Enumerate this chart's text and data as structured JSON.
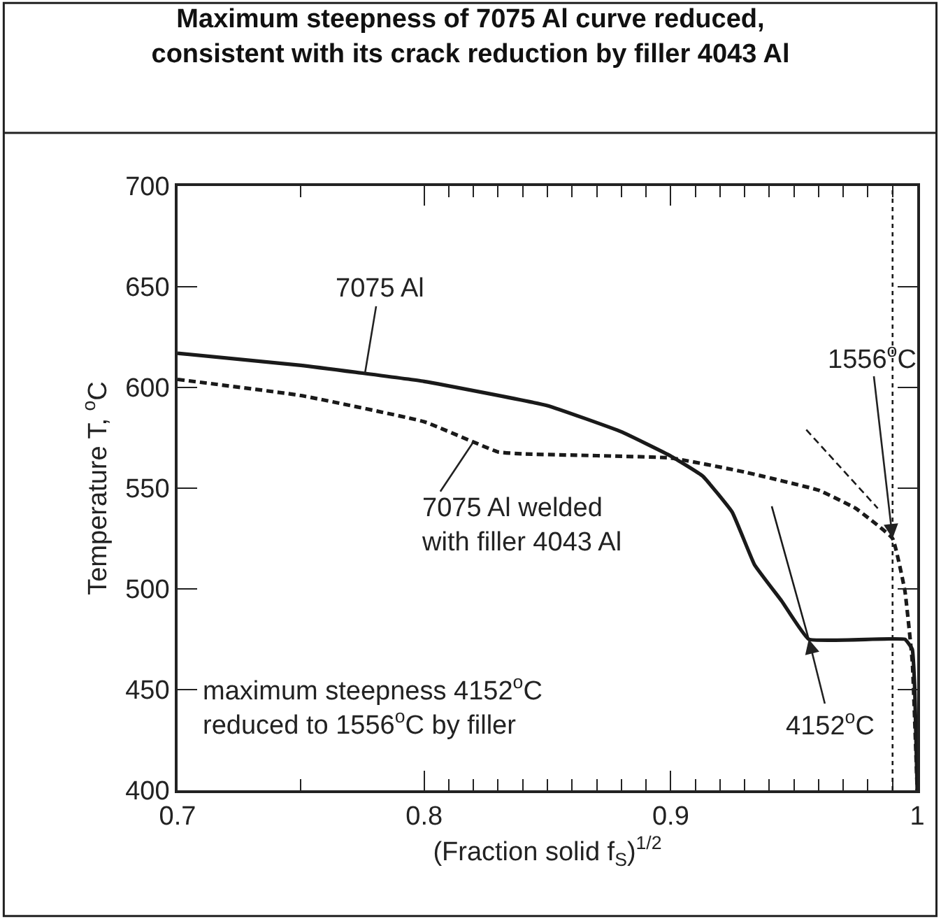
{
  "chart_data": {
    "type": "line",
    "title": "Maximum steepness of 7075 Al curve reduced,\nconsistent with its crack reduction by filler 4043 Al",
    "xlabel": "(Fraction solid f$_{S}$)$^{1/2}$",
    "ylabel": "Temperature T, $^{o}$C",
    "xlim": [
      0.7,
      1
    ],
    "ylim": [
      400,
      700
    ],
    "xticks": [
      0.7,
      0.8,
      0.9,
      1
    ],
    "yticks": [
      400,
      450,
      500,
      550,
      600,
      650,
      700
    ],
    "marker": "none",
    "series": [
      {
        "color": "#1a1a1a",
        "line_style": "solid",
        "x": [
          0.7,
          0.75,
          0.8,
          0.85,
          0.88,
          0.9,
          0.913,
          0.925,
          0.934,
          0.945,
          0.956,
          0.995,
          0.998,
          0.999,
          1.0
        ],
        "values": [
          617,
          611,
          603,
          591,
          578,
          566,
          556,
          538,
          512,
          494,
          475,
          475,
          470,
          450,
          400
        ]
      },
      {
        "color": "#1a1a1a",
        "line_style": "dashed",
        "x": [
          0.7,
          0.75,
          0.8,
          0.83,
          0.84,
          0.9,
          0.93,
          0.96,
          0.975,
          0.99,
          0.995,
          0.998,
          1.0
        ],
        "values": [
          604,
          596,
          583,
          568,
          567,
          565,
          558,
          549,
          540,
          525,
          499,
          464,
          400
        ]
      },
      {
        "color": "#1a1a1a",
        "line_style": "solid",
        "x": [
          0.941,
          0.956
        ],
        "values": [
          541,
          475
        ]
      },
      {
        "color": "#1a1a1a",
        "line_style": "dashed",
        "x": [
          0.955,
          0.984
        ],
        "values": [
          579,
          540
        ]
      }
    ],
    "ref_lines": [
      {
        "axis": "x",
        "value": 0.99,
        "label": null,
        "line_style": "dotted",
        "color": "#1a1a1a"
      }
    ],
    "annotations": [
      {
        "text": "7075 Al",
        "x": 0.776,
        "y": 607
      },
      {
        "text": "7075 Al welded\nwith filler 4043 Al",
        "x": 0.82,
        "y": 573
      },
      {
        "text": "1556$^{o}$C",
        "x": 0.99,
        "y": 525
      },
      {
        "text": "4152$^{o}$C",
        "x": 0.956,
        "y": 475
      },
      "maximum steepness 4152$^{o}$C\nreduced to 1556$^{o}$C by filler"
    ]
  }
}
